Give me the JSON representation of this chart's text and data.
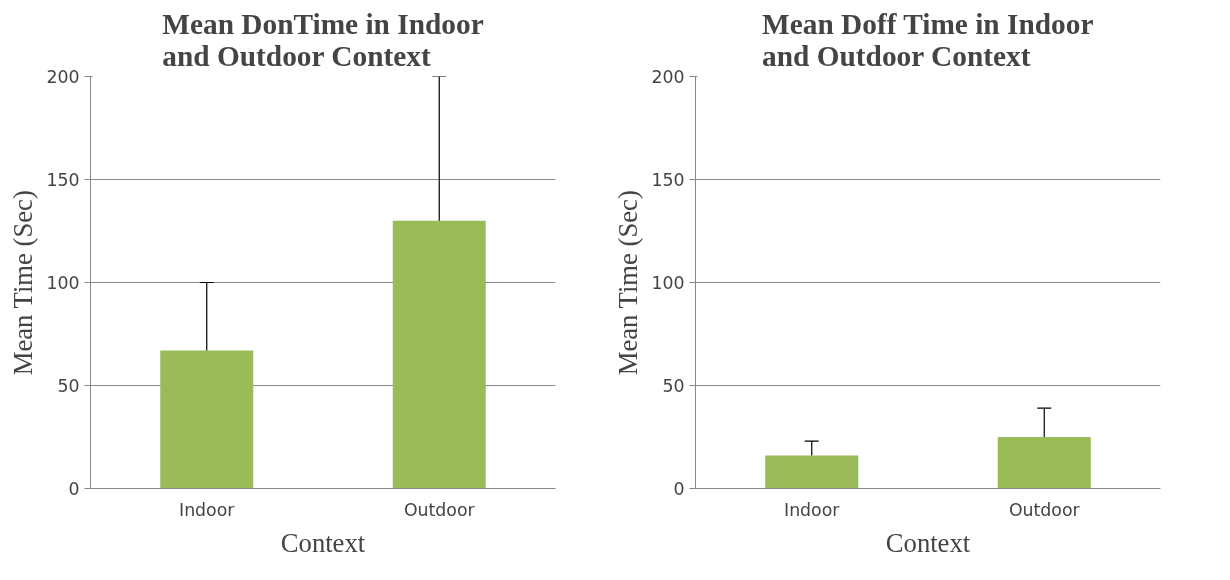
{
  "chart_data": [
    {
      "type": "bar",
      "title": "Mean DonTime in Indoor and Outdoor Context",
      "xlabel": "Context",
      "ylabel": "Mean Time (Sec)",
      "categories": [
        "Indoor",
        "Outdoor"
      ],
      "values": [
        67,
        130
      ],
      "color": "#9bbb59",
      "errors": [
        [
          67,
          100
        ],
        [
          130,
          200
        ]
      ],
      "ylim": [
        0,
        200
      ],
      "yticks": [
        0,
        50,
        100,
        150,
        200
      ],
      "grid": "y"
    },
    {
      "type": "bar",
      "title": "Mean Doff Time in Indoor and Outdoor Context",
      "xlabel": "Context",
      "ylabel": "Mean Time (Sec)",
      "categories": [
        "Indoor",
        "Outdoor"
      ],
      "values": [
        16,
        25
      ],
      "color": "#9bbb59",
      "errors": [
        [
          16,
          23
        ],
        [
          25,
          39
        ]
      ],
      "ylim": [
        0,
        200
      ],
      "yticks": [
        0,
        50,
        100,
        150,
        200
      ],
      "grid": "y"
    }
  ]
}
